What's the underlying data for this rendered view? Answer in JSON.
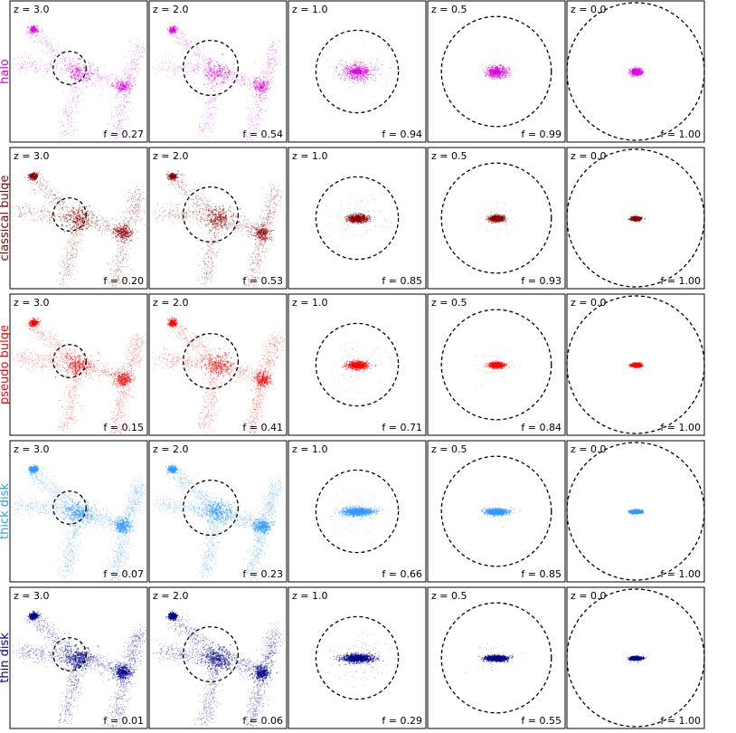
{
  "chart_data": {
    "type": "scatter",
    "title": "",
    "columns": [
      "z = 3.0",
      "z = 2.0",
      "z = 1.0",
      "z = 0.5",
      "z = 0.0"
    ],
    "rows": [
      {
        "label": "halo",
        "color": "#e000e0",
        "f": [
          "f = 0.27",
          "f = 0.54",
          "f = 0.94",
          "f = 0.99",
          "f = 1.00"
        ]
      },
      {
        "label": "classical bulge",
        "color": "#8b0000",
        "f": [
          "f = 0.20",
          "f = 0.53",
          "f = 0.85",
          "f = 0.93",
          "f = 1.00"
        ]
      },
      {
        "label": "pseudo bulge",
        "color": "#ff0000",
        "f": [
          "f = 0.15",
          "f = 0.41",
          "f = 0.71",
          "f = 0.84",
          "f = 1.00"
        ]
      },
      {
        "label": "thick disk",
        "color": "#3399ff",
        "f": [
          "f = 0.07",
          "f = 0.23",
          "f = 0.66",
          "f = 0.85",
          "f = 1.00"
        ]
      },
      {
        "label": "thin disk",
        "color": "#00008b",
        "f": [
          "f = 0.01",
          "f = 0.06",
          "f = 0.29",
          "f = 0.55",
          "f = 1.00"
        ]
      }
    ],
    "aperture_radius_fraction": [
      0.12,
      0.2,
      0.3,
      0.4,
      0.5
    ],
    "f_values": [
      [
        0.27,
        0.54,
        0.94,
        0.99,
        1.0
      ],
      [
        0.2,
        0.53,
        0.85,
        0.93,
        1.0
      ],
      [
        0.15,
        0.41,
        0.71,
        0.84,
        1.0
      ],
      [
        0.07,
        0.23,
        0.66,
        0.85,
        1.0
      ],
      [
        0.01,
        0.06,
        0.29,
        0.55,
        1.0
      ]
    ]
  }
}
